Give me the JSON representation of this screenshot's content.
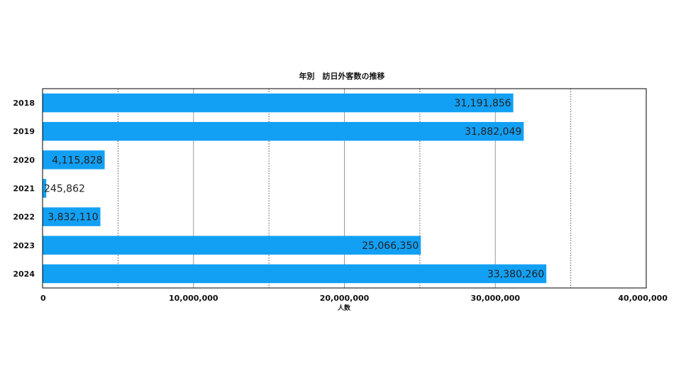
{
  "chart_data": {
    "type": "bar",
    "orientation": "horizontal",
    "title": "年別　訪日外客数の推移",
    "xlabel": "人数",
    "ylabel": "",
    "categories": [
      "2018",
      "2019",
      "2020",
      "2021",
      "2022",
      "2023",
      "2024"
    ],
    "values": [
      31191856,
      31882049,
      4115828,
      245862,
      3832110,
      25066350,
      33380260
    ],
    "data_labels": [
      "31,191,856",
      "31,882,049",
      "4,115,828",
      "245,862",
      "3,832,110",
      "25,066,350",
      "33,380,260"
    ],
    "xlim": [
      0,
      40000000
    ],
    "x_ticks": [
      0,
      10000000,
      20000000,
      30000000,
      40000000
    ],
    "x_tick_labels": [
      "0",
      "10,000,000",
      "20,000,000",
      "30,000,000",
      "40,000,000"
    ],
    "bar_color": "#12a0f5",
    "grid": "vertical",
    "legend": "none"
  }
}
